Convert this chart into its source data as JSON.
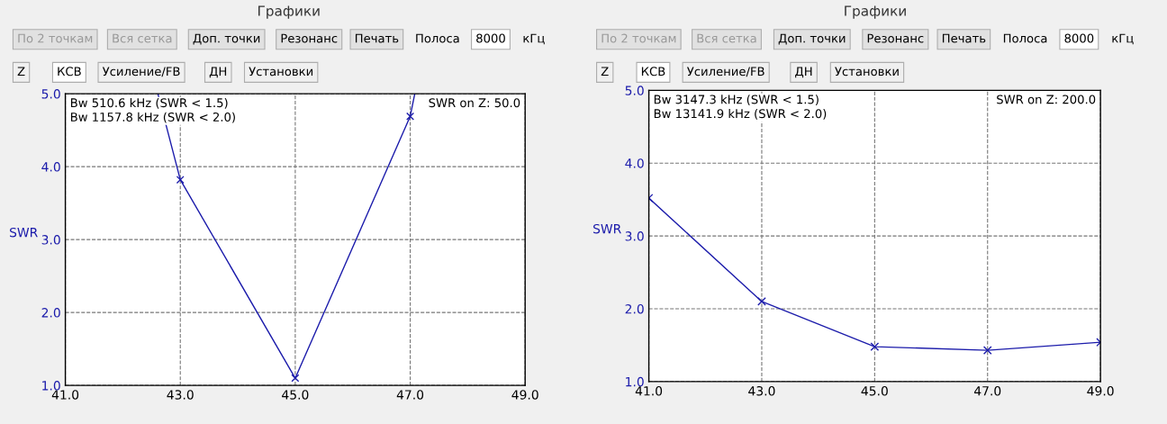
{
  "chart_data": [
    {
      "type": "other",
      "title": "Графики",
      "annotations": [
        "По 2 точкам",
        "Вся сетка",
        "Доп. точки",
        "Резонанс",
        "Печать",
        "Полоса",
        "8000",
        "кГц",
        "Z",
        "КСВ",
        "Усиление/FB",
        "ДН",
        "Установки"
      ]
    },
    {
      "type": "line",
      "ylabel": "SWR",
      "xlim": [
        41,
        49
      ],
      "ylim": [
        1,
        5
      ],
      "xticks": [
        {
          "value": 41,
          "label": "41.0"
        },
        {
          "value": 43,
          "label": "43.0"
        },
        {
          "value": 45,
          "label": "45.0"
        },
        {
          "value": 47,
          "label": "47.0"
        },
        {
          "value": 49,
          "label": "49.0"
        }
      ],
      "yticks": [
        {
          "value": 1,
          "label": "1.0"
        },
        {
          "value": 2,
          "label": "2.0"
        },
        {
          "value": 3,
          "label": "3.0"
        },
        {
          "value": 4,
          "label": "4.0"
        },
        {
          "value": 5,
          "label": "5.0"
        }
      ],
      "grid": true,
      "line_style": "solid",
      "series": [
        {
          "type": "line",
          "color": "#1c1cab",
          "marker": "none",
          "x": [
            42.61,
            43,
            45,
            47,
            47.08
          ],
          "values": [
            5.0,
            3.82,
            1.1,
            4.69,
            5.0
          ]
        },
        {
          "type": "scatter",
          "color": "#1c1cab",
          "marker": "cross",
          "x": [
            43,
            45,
            47
          ],
          "values": [
            3.82,
            1.1,
            4.69
          ]
        }
      ],
      "annotations": [
        "Bw 510.6 kHz (SWR < 1.5)\nBw 1157.8 kHz (SWR < 2.0)",
        "SWR on Z: 50.0"
      ]
    },
    {
      "type": "other",
      "title": "Графики",
      "annotations": [
        "По 2 точкам",
        "Вся сетка",
        "Доп. точки",
        "Резонанс",
        "Печать",
        "Полоса",
        "8000",
        "кГц",
        "Z",
        "КСВ",
        "Усиление/FB",
        "ДН",
        "Установки"
      ]
    },
    {
      "type": "line",
      "ylabel": "SWR",
      "xlim": [
        41,
        49
      ],
      "ylim": [
        1,
        5
      ],
      "xticks": [
        {
          "value": 41,
          "label": "41.0"
        },
        {
          "value": 43,
          "label": "43.0"
        },
        {
          "value": 45,
          "label": "45.0"
        },
        {
          "value": 47,
          "label": "47.0"
        },
        {
          "value": 49,
          "label": "49.0"
        }
      ],
      "yticks": [
        {
          "value": 1,
          "label": "1.0"
        },
        {
          "value": 2,
          "label": "2.0"
        },
        {
          "value": 3,
          "label": "3.0"
        },
        {
          "value": 4,
          "label": "4.0"
        },
        {
          "value": 5,
          "label": "5.0"
        }
      ],
      "grid": true,
      "line_style": "solid",
      "marker": "cross",
      "series": [
        {
          "color": "#1c1cab",
          "x": [
            41,
            43,
            45,
            47,
            49
          ],
          "values": [
            3.52,
            2.1,
            1.48,
            1.43,
            1.54
          ]
        }
      ],
      "annotations": [
        "Bw 3147.3 kHz (SWR < 1.5)\nBw 13141.9 kHz (SWR < 2.0)",
        "SWR on Z: 200.0"
      ]
    }
  ]
}
